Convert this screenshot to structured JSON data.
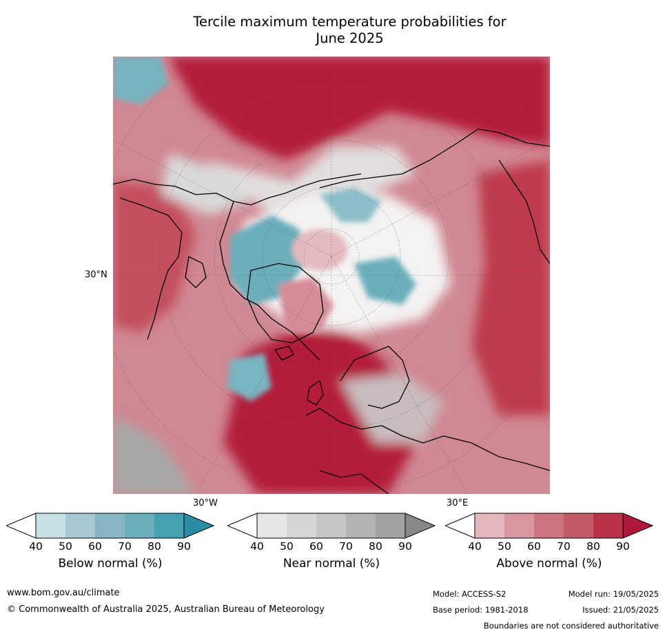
{
  "title_line1": "Tercile maximum temperature probabilities for",
  "title_line2": "June 2025",
  "map": {
    "lat_label": "30°N",
    "lon_labels": [
      "30°W",
      "30°E"
    ],
    "projection": "north-polar-stereographic",
    "colors": {
      "above_strong": "#b41d3a",
      "above_mid": "#c95567",
      "above_light": "#d98d97",
      "near": "#d9d9d9",
      "below": "#6aaebc",
      "white": "#ffffff"
    }
  },
  "colorbars": [
    {
      "label": "Below normal (%)",
      "ticks": [
        "40",
        "50",
        "60",
        "70",
        "80",
        "90"
      ],
      "colors": [
        "#c9e0e6",
        "#a6c8d0",
        "#88b5c2",
        "#6aaebc",
        "#45a0b2",
        "#2b8da3"
      ]
    },
    {
      "label": "Near normal (%)",
      "ticks": [
        "40",
        "50",
        "60",
        "70",
        "80",
        "90"
      ],
      "colors": [
        "#e6e6e6",
        "#d6d6d6",
        "#c6c6c6",
        "#b4b4b4",
        "#a2a2a2",
        "#888888"
      ]
    },
    {
      "label": "Above normal (%)",
      "ticks": [
        "40",
        "50",
        "60",
        "70",
        "80",
        "90"
      ],
      "colors": [
        "#e5b8be",
        "#d8969f",
        "#cc7480",
        "#c25b68",
        "#b83248",
        "#b0183a"
      ]
    }
  ],
  "footer": {
    "website": "www.bom.gov.au/climate",
    "copyright": "© Commonwealth of Australia 2025, Australian Bureau of Meteorology",
    "model": "Model: ACCESS-S2",
    "base_period": "Base period: 1981-2018",
    "model_run": "Model run: 19/05/2025",
    "issued": "Issued: 21/05/2025",
    "disclaimer": "Boundaries are not considered authoritative"
  }
}
